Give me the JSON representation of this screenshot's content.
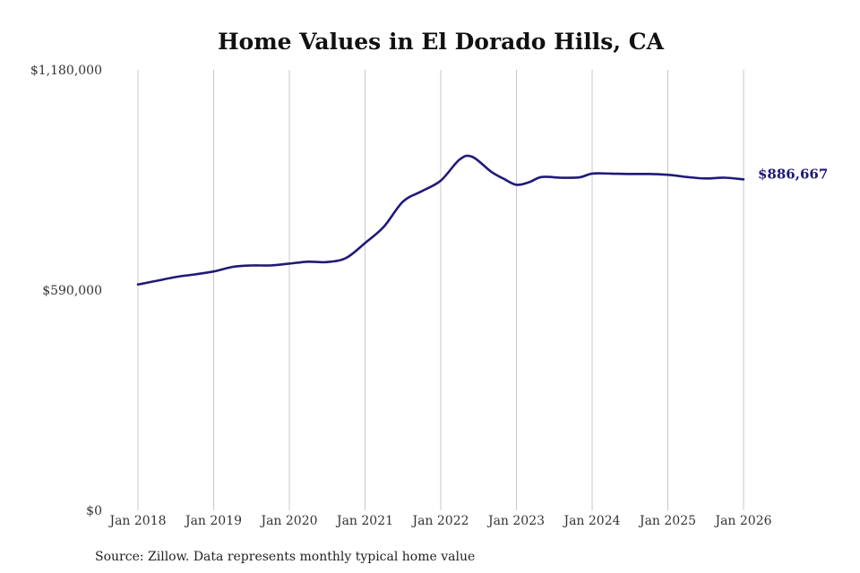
{
  "chart_data": {
    "type": "line",
    "title": "Home Values in El Dorado Hills, CA",
    "source_note": "Source: Zillow. Data represents monthly typical home value",
    "ylim": [
      0,
      1180000
    ],
    "y_ticks": [
      {
        "value": 0,
        "label": "$0"
      },
      {
        "value": 590000,
        "label": "$590,000"
      },
      {
        "value": 1180000,
        "label": "$1,180,000"
      }
    ],
    "x_ticks": [
      "Jan 2018",
      "Jan 2019",
      "Jan 2020",
      "Jan 2021",
      "Jan 2022",
      "Jan 2023",
      "Jan 2024",
      "Jan 2025",
      "Jan 2026"
    ],
    "grid": "vertical",
    "color": "#1f1a78",
    "end_label": "$886,667",
    "series": [
      {
        "x": [
          "2018-01",
          "2018-04",
          "2018-07",
          "2018-10",
          "2019-01",
          "2019-04",
          "2019-07",
          "2019-10",
          "2020-01",
          "2020-04",
          "2020-07",
          "2020-10",
          "2021-01",
          "2021-04",
          "2021-07",
          "2021-10",
          "2022-01",
          "2022-04",
          "2022-06",
          "2022-09",
          "2022-11",
          "2023-01",
          "2023-03",
          "2023-05",
          "2023-08",
          "2023-11",
          "2024-01",
          "2024-04",
          "2024-07",
          "2024-10",
          "2025-01",
          "2025-04",
          "2025-07",
          "2025-10",
          "2026-01"
        ],
        "values": [
          605000,
          615000,
          625000,
          632000,
          640000,
          652000,
          656000,
          656000,
          661000,
          666000,
          665000,
          676000,
          716000,
          760000,
          827000,
          855000,
          883000,
          940000,
          947000,
          907000,
          888000,
          872000,
          879000,
          893000,
          891000,
          892000,
          902000,
          902000,
          901000,
          901000,
          899000,
          893000,
          889000,
          891000,
          886667
        ]
      }
    ]
  }
}
